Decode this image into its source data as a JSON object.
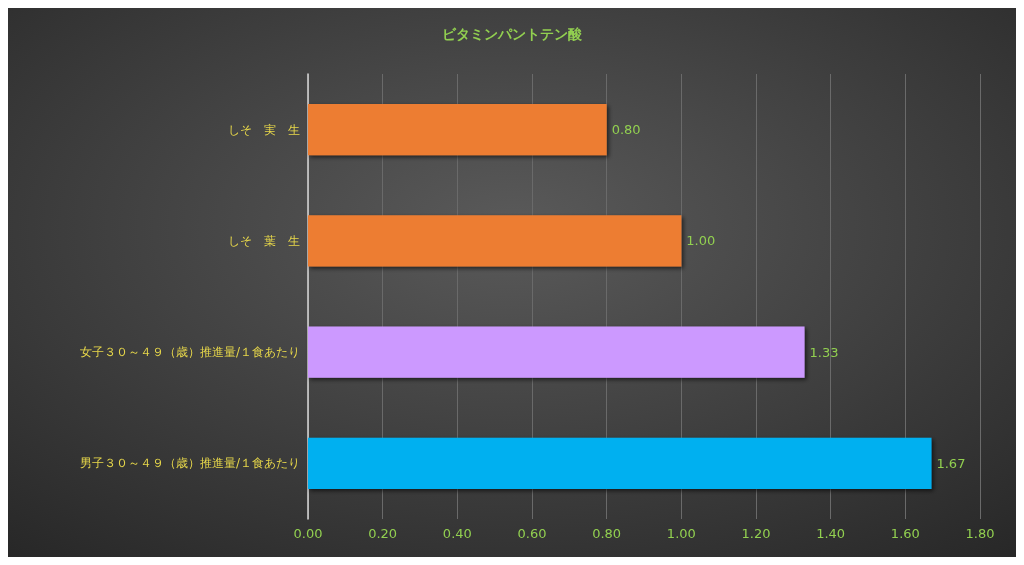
{
  "chart_data": {
    "type": "bar",
    "orientation": "horizontal",
    "title": "ビタミンパントテン酸",
    "categories": [
      "しそ　実　生",
      "しそ　葉　生",
      "女子３０～４９（歳）推進量/１食あたり",
      "男子３０～４９（歳）推進量/１食あたり"
    ],
    "values": [
      0.8,
      1.0,
      1.33,
      1.67
    ],
    "colors": [
      "#ed7d31",
      "#ed7d31",
      "#cc99ff",
      "#00b0f0"
    ],
    "value_labels": [
      "0.80",
      "1.00",
      "1.33",
      "1.67"
    ],
    "xlim": [
      0,
      1.8
    ],
    "xticks": [
      {
        "value": 0,
        "label": "0.00"
      },
      {
        "value": 0.2,
        "label": "0.20"
      },
      {
        "value": 0.4,
        "label": "0.40"
      },
      {
        "value": 0.6,
        "label": "0.60"
      },
      {
        "value": 0.8,
        "label": "0.80"
      },
      {
        "value": 1.0,
        "label": "1.00"
      },
      {
        "value": 1.2,
        "label": "1.20"
      },
      {
        "value": 1.4,
        "label": "1.40"
      },
      {
        "value": 1.6,
        "label": "1.60"
      },
      {
        "value": 1.8,
        "label": "1.80"
      }
    ],
    "grid": "x"
  }
}
